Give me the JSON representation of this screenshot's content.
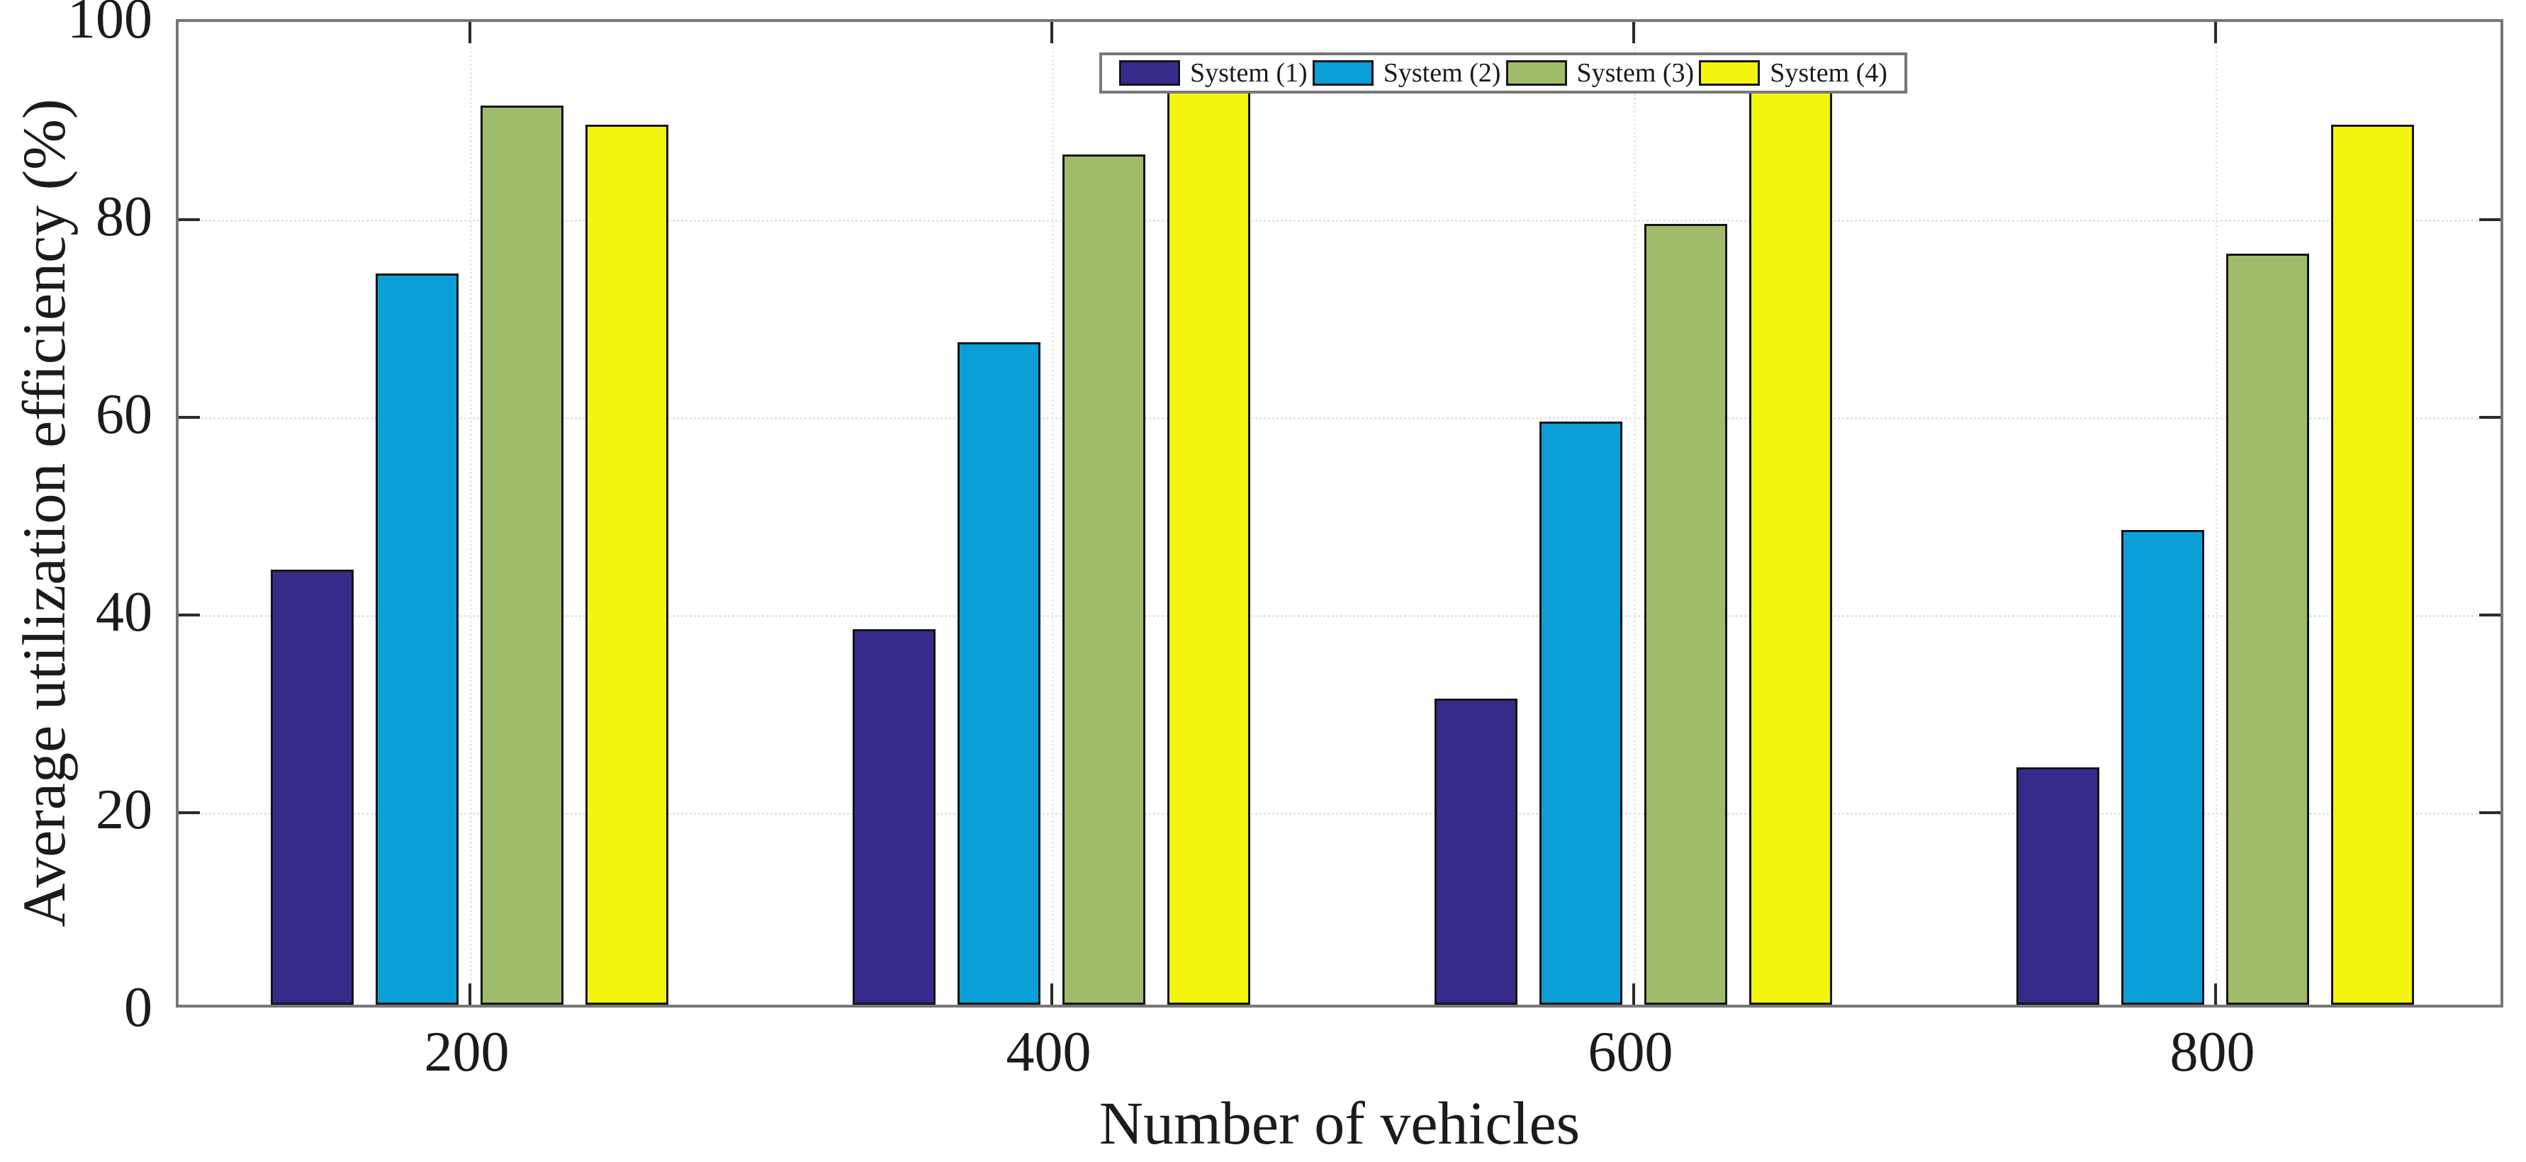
{
  "figure": {
    "background": "#ffffff",
    "axis_border_color": "#777777",
    "tick_color": "#2a2a2a",
    "grid_color": "#e5e5e5",
    "text_color": "#1b1b1b",
    "bar_edge_color": "#151515"
  },
  "chart_data": {
    "type": "bar",
    "title": "",
    "xlabel": "Number of vehicles",
    "ylabel": "Average utilization efficiency (%)",
    "categories": [
      "200",
      "400",
      "600",
      "800"
    ],
    "series": [
      {
        "name": "System (1)",
        "color": "#362b8b",
        "values": [
          44,
          38,
          31,
          24
        ]
      },
      {
        "name": "System (2)",
        "color": "#0c9ed6",
        "values": [
          74,
          67,
          59,
          48
        ]
      },
      {
        "name": "System (3)",
        "color": "#a0bc6a",
        "values": [
          91,
          86,
          79,
          76
        ]
      },
      {
        "name": "System (4)",
        "color": "#f4f50e",
        "values": [
          89,
          94,
          94,
          89
        ]
      }
    ],
    "ylim": [
      0,
      100
    ],
    "yticks": [
      0,
      20,
      40,
      60,
      80,
      100
    ],
    "grid": "dotted horizontal at yticks and dotted vertical at category centers",
    "legend_position": "top-center-inside",
    "legend_orientation": "horizontal"
  }
}
